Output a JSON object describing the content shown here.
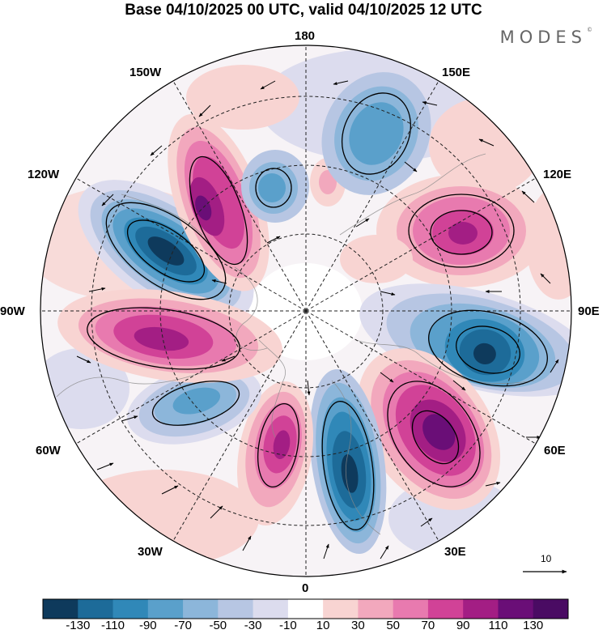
{
  "title": "Base 04/10/2025 00 UTC, valid 04/10/2025 12 UTC",
  "logo": {
    "text": "MODES",
    "mark": "©"
  },
  "longitude_labels": {
    "lon_180": "180",
    "lon_150e": "150E",
    "lon_120e": "120E",
    "lon_90e": "90E",
    "lon_60e": "60E",
    "lon_30e": "30E",
    "lon_0": "0",
    "lon_30w": "30W",
    "lon_60w": "60W",
    "lon_90w": "90W",
    "lon_120w": "120W",
    "lon_150w": "150W"
  },
  "vector_scale": {
    "label": "10"
  },
  "colorbar": {
    "labels": [
      "-130",
      "-110",
      "-90",
      "-70",
      "-50",
      "-30",
      "-10",
      "10",
      "30",
      "50",
      "70",
      "90",
      "110",
      "130"
    ],
    "colors": [
      "#0e3a5c",
      "#1d6b99",
      "#3088b8",
      "#5aa0cb",
      "#8cb6da",
      "#b7c6e3",
      "#dcdcee",
      "#ffffff",
      "#f8d4d2",
      "#f2a8bd",
      "#e87aaf",
      "#d14297",
      "#a31e84",
      "#6a0e77",
      "#4a0b63"
    ]
  },
  "anomaly_centers": [
    {
      "id": "low-120w",
      "sign": "negative",
      "peak": -130
    },
    {
      "id": "high-150w",
      "sign": "positive",
      "peak": 110
    },
    {
      "id": "low-180",
      "sign": "negative",
      "peak": -70
    },
    {
      "id": "low-150e",
      "sign": "negative",
      "peak": -70
    },
    {
      "id": "high-120e",
      "sign": "positive",
      "peak": 110
    },
    {
      "id": "low-90e",
      "sign": "negative",
      "peak": -130
    },
    {
      "id": "high-50e",
      "sign": "positive",
      "peak": 130
    },
    {
      "id": "low-10e",
      "sign": "negative",
      "peak": -130
    },
    {
      "id": "high-30w",
      "sign": "positive",
      "peak": 110
    },
    {
      "id": "low-60w",
      "sign": "negative",
      "peak": -90
    },
    {
      "id": "high-90w",
      "sign": "positive",
      "peak": 110
    }
  ]
}
